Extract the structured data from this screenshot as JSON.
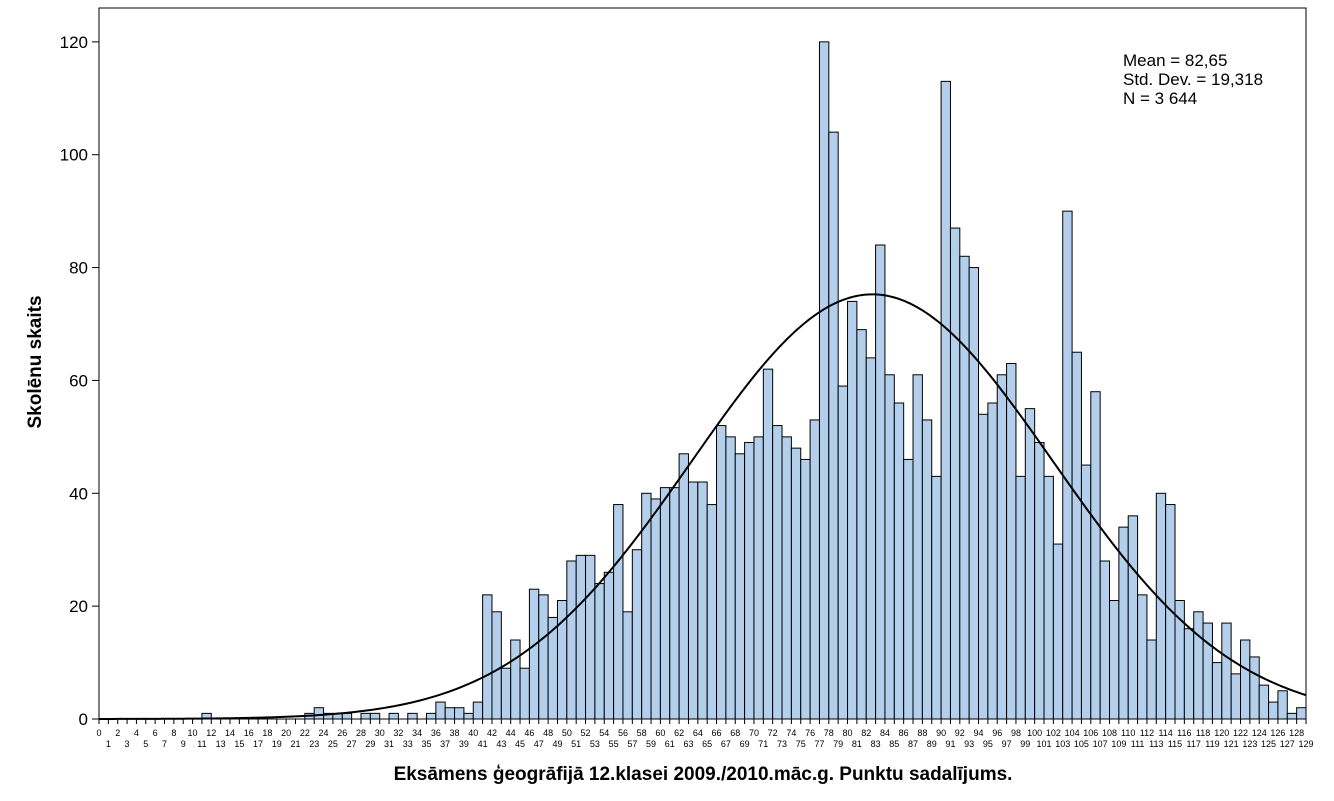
{
  "chart_data": {
    "type": "bar",
    "subtype": "histogram",
    "xlabel": "Eksāmens ģeogrāfijā 12.klasei 2009./2010.māc.g. Punktu sadalījums.",
    "ylabel": "Skolēnu skaits",
    "ylim": [
      0,
      126
    ],
    "yticks": [
      0,
      20,
      40,
      60,
      80,
      100,
      120
    ],
    "x_range": [
      0,
      129
    ],
    "stats": {
      "mean": "Mean = 82,65",
      "std": "Std. Dev. = 19,318",
      "n": "N = 3 644"
    },
    "normal_curve": {
      "mean": 82.65,
      "std": 19.318,
      "n": 3644
    },
    "colors": {
      "bar_fill": "#b4cfec",
      "bar_stroke": "#000000",
      "curve": "#000000"
    },
    "x": [
      0,
      1,
      2,
      3,
      4,
      5,
      6,
      7,
      8,
      9,
      10,
      11,
      12,
      13,
      14,
      15,
      16,
      17,
      18,
      19,
      20,
      21,
      22,
      23,
      24,
      25,
      26,
      27,
      28,
      29,
      30,
      31,
      32,
      33,
      34,
      35,
      36,
      37,
      38,
      39,
      40,
      41,
      42,
      43,
      44,
      45,
      46,
      47,
      48,
      49,
      50,
      51,
      52,
      53,
      54,
      55,
      56,
      57,
      58,
      59,
      60,
      61,
      62,
      63,
      64,
      65,
      66,
      67,
      68,
      69,
      70,
      71,
      72,
      73,
      74,
      75,
      76,
      77,
      78,
      79,
      80,
      81,
      82,
      83,
      84,
      85,
      86,
      87,
      88,
      89,
      90,
      91,
      92,
      93,
      94,
      95,
      96,
      97,
      98,
      99,
      100,
      101,
      102,
      103,
      104,
      105,
      106,
      107,
      108,
      109,
      110,
      111,
      112,
      113,
      114,
      115,
      116,
      117,
      118,
      119,
      120,
      121,
      122,
      123,
      124,
      125,
      126,
      127,
      128
    ],
    "values": [
      0,
      0,
      0,
      0,
      0,
      0,
      0,
      0,
      0,
      0,
      0,
      1,
      0,
      0,
      0,
      0,
      0,
      0,
      0,
      0,
      0,
      0,
      1,
      2,
      1,
      1,
      1,
      0,
      1,
      1,
      0,
      1,
      0,
      1,
      0,
      1,
      3,
      2,
      2,
      1,
      3,
      22,
      19,
      9,
      14,
      9,
      23,
      22,
      18,
      21,
      28,
      29,
      29,
      24,
      26,
      38,
      19,
      30,
      40,
      39,
      41,
      41,
      47,
      42,
      42,
      38,
      52,
      50,
      47,
      49,
      50,
      62,
      52,
      50,
      48,
      46,
      53,
      120,
      104,
      59,
      74,
      69,
      64,
      84,
      61,
      56,
      46,
      61,
      53,
      43,
      113,
      87,
      82,
      80,
      54,
      56,
      61,
      63,
      43,
      55,
      49,
      43,
      31,
      90,
      65,
      45,
      58,
      28,
      21,
      34,
      36,
      22,
      14,
      40,
      38,
      21,
      16,
      19,
      17,
      10,
      17,
      8,
      14,
      11,
      6,
      3,
      5,
      1,
      2
    ]
  }
}
